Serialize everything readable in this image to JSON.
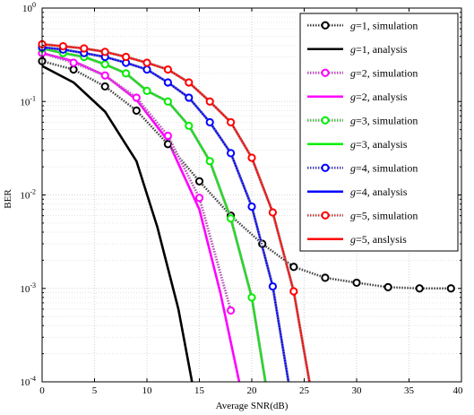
{
  "chart_data": {
    "type": "line",
    "title": "",
    "xlabel": "Average SNR(dB)",
    "ylabel": "BER",
    "xlim": [
      0,
      40
    ],
    "ylim": [
      0.0001,
      1
    ],
    "yscale": "log",
    "grid": true,
    "legend_position": "top-right",
    "x_ticks": [
      "0",
      "5",
      "10",
      "15",
      "20",
      "25",
      "30",
      "35",
      "40"
    ],
    "y_ticks": [
      {
        "base": "10",
        "exp": "0"
      },
      {
        "base": "10",
        "exp": "-1"
      },
      {
        "base": "10",
        "exp": "-2"
      },
      {
        "base": "10",
        "exp": "-3"
      },
      {
        "base": "10",
        "exp": "-4"
      }
    ],
    "series": [
      {
        "name": "g=1, simulation",
        "color": "#000000",
        "style": "sim",
        "x": [
          0,
          3,
          6,
          9,
          12,
          15,
          18,
          21,
          24,
          27,
          30,
          33,
          36,
          39
        ],
        "y": [
          0.27,
          0.22,
          0.145,
          0.08,
          0.035,
          0.014,
          0.006,
          0.003,
          0.0017,
          0.0013,
          0.00115,
          0.00103,
          0.001,
          0.001
        ]
      },
      {
        "name": "g=1, analysis",
        "color": "#000000",
        "style": "ana",
        "x": [
          0,
          3,
          6,
          9,
          11,
          13,
          14.3
        ],
        "y": [
          0.24,
          0.16,
          0.078,
          0.023,
          0.0045,
          0.0006,
          0.0001
        ]
      },
      {
        "name": "g=2, simulation",
        "color": "#ff00ff",
        "style": "sim",
        "x": [
          0,
          3,
          6,
          9,
          12,
          15,
          18
        ],
        "y": [
          0.33,
          0.26,
          0.19,
          0.11,
          0.043,
          0.0093,
          0.00058
        ]
      },
      {
        "name": "g=2, analysis",
        "color": "#ff00ff",
        "style": "ana",
        "x": [
          0,
          3,
          6,
          9,
          12,
          15,
          17,
          18.8
        ],
        "y": [
          0.33,
          0.27,
          0.19,
          0.105,
          0.038,
          0.007,
          0.0009,
          0.0001
        ]
      },
      {
        "name": "g=3, simulation",
        "color": "#00ee00",
        "style": "sim",
        "x": [
          0,
          2,
          4,
          6,
          8,
          10,
          12,
          14,
          16,
          18,
          20,
          21.3
        ],
        "y": [
          0.37,
          0.33,
          0.3,
          0.25,
          0.2,
          0.13,
          0.1,
          0.055,
          0.023,
          0.0056,
          0.0008,
          0.0001
        ]
      },
      {
        "name": "g=3, analysis",
        "color": "#00ee00",
        "style": "ana",
        "x": [
          0,
          2,
          4,
          6,
          8,
          10,
          12,
          14,
          16,
          18,
          20,
          21.3
        ],
        "y": [
          0.37,
          0.33,
          0.3,
          0.25,
          0.2,
          0.13,
          0.1,
          0.055,
          0.023,
          0.0056,
          0.0008,
          0.0001
        ]
      },
      {
        "name": "g=4, simulation",
        "color": "#0000ff",
        "style": "sim",
        "x": [
          0,
          2,
          4,
          6,
          8,
          10,
          12,
          14,
          16,
          18,
          20,
          22,
          23.5
        ],
        "y": [
          0.38,
          0.36,
          0.33,
          0.3,
          0.26,
          0.22,
          0.16,
          0.11,
          0.06,
          0.028,
          0.0075,
          0.00105,
          0.0001
        ]
      },
      {
        "name": "g=4, analysis",
        "color": "#0000ff",
        "style": "ana",
        "x": [
          0,
          2,
          4,
          6,
          8,
          10,
          12,
          14,
          16,
          18,
          20,
          22,
          23.5
        ],
        "y": [
          0.38,
          0.36,
          0.33,
          0.3,
          0.26,
          0.22,
          0.16,
          0.11,
          0.06,
          0.028,
          0.0075,
          0.00105,
          0.0001
        ]
      },
      {
        "name": "g=5, simulation",
        "color": "#ff0000",
        "style": "sim",
        "x": [
          0,
          2,
          4,
          6,
          8,
          10,
          12,
          14,
          16,
          18,
          20,
          22,
          24,
          25.5
        ],
        "y": [
          0.41,
          0.39,
          0.37,
          0.34,
          0.3,
          0.26,
          0.22,
          0.16,
          0.1,
          0.06,
          0.025,
          0.0065,
          0.00093,
          0.0001
        ]
      },
      {
        "name": "g=5, anslysis",
        "color": "#ff0000",
        "style": "ana",
        "x": [
          0,
          2,
          4,
          6,
          8,
          10,
          12,
          14,
          16,
          18,
          20,
          22,
          24,
          25.5
        ],
        "y": [
          0.41,
          0.39,
          0.37,
          0.34,
          0.3,
          0.26,
          0.22,
          0.16,
          0.1,
          0.06,
          0.025,
          0.0065,
          0.00093,
          0.0001
        ]
      }
    ]
  }
}
